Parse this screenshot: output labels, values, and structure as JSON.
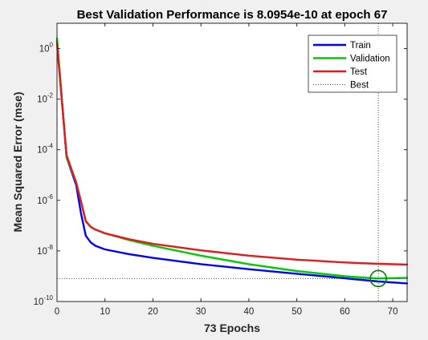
{
  "chart_data": {
    "type": "line",
    "title": "Best Validation Performance is 8.0954e-10 at epoch 67",
    "xlabel": "73 Epochs",
    "ylabel": "Mean Squared Error  (mse)",
    "xlim": [
      0,
      73
    ],
    "ylim": [
      1e-10,
      10
    ],
    "yscale": "log",
    "grid": false,
    "legend_position": "top-right",
    "xticks": [
      0,
      10,
      20,
      30,
      40,
      50,
      60,
      70
    ],
    "yticks": [
      {
        "base": "10",
        "exp": "0",
        "value": 1
      },
      {
        "base": "10",
        "exp": "-2",
        "value": 0.01
      },
      {
        "base": "10",
        "exp": "-4",
        "value": 0.0001
      },
      {
        "base": "10",
        "exp": "-6",
        "value": 1e-06
      },
      {
        "base": "10",
        "exp": "-8",
        "value": 1e-08
      },
      {
        "base": "10",
        "exp": "-10",
        "value": 1e-10
      }
    ],
    "series": [
      {
        "name": "Train",
        "color": "#0000ff",
        "style": "solid",
        "points": [
          [
            0,
            2.0
          ],
          [
            2,
            5e-05
          ],
          [
            4,
            4e-06
          ],
          [
            5,
            3e-07
          ],
          [
            6,
            4e-08
          ],
          [
            7,
            2.2e-08
          ],
          [
            8,
            1.6e-08
          ],
          [
            10,
            1.15e-08
          ],
          [
            15,
            7.5e-09
          ],
          [
            20,
            5.3e-09
          ],
          [
            30,
            3e-09
          ],
          [
            40,
            1.9e-09
          ],
          [
            50,
            1.25e-09
          ],
          [
            60,
            8.3e-10
          ],
          [
            67,
            6.2e-10
          ],
          [
            73,
            5.2e-10
          ]
        ]
      },
      {
        "name": "Validation",
        "color": "#00cc00",
        "style": "solid",
        "points": [
          [
            0,
            2.5
          ],
          [
            2,
            5e-05
          ],
          [
            4,
            5e-06
          ],
          [
            5,
            9e-07
          ],
          [
            6,
            1.5e-07
          ],
          [
            7,
            9e-08
          ],
          [
            8,
            7e-08
          ],
          [
            10,
            5e-08
          ],
          [
            15,
            2.7e-08
          ],
          [
            20,
            1.6e-08
          ],
          [
            30,
            6.5e-09
          ],
          [
            40,
            3e-09
          ],
          [
            50,
            1.6e-09
          ],
          [
            60,
            1e-09
          ],
          [
            67,
            8.0954e-10
          ],
          [
            73,
            8.6e-10
          ]
        ]
      },
      {
        "name": "Test",
        "color": "#e41a1c",
        "style": "solid",
        "points": [
          [
            0,
            1.5
          ],
          [
            2,
            6e-05
          ],
          [
            4,
            5e-06
          ],
          [
            5,
            9e-07
          ],
          [
            6,
            1.5e-07
          ],
          [
            7,
            9e-08
          ],
          [
            8,
            7e-08
          ],
          [
            10,
            5e-08
          ],
          [
            15,
            2.9e-08
          ],
          [
            20,
            1.9e-08
          ],
          [
            30,
            1.05e-08
          ],
          [
            40,
            6.5e-09
          ],
          [
            50,
            4.5e-09
          ],
          [
            60,
            3.5e-09
          ],
          [
            67,
            3.1e-09
          ],
          [
            73,
            2.9e-09
          ]
        ]
      },
      {
        "name": "Best",
        "color": "#008000",
        "style": "dotted",
        "best_epoch": 67,
        "best_value": 8.0954e-10
      }
    ]
  }
}
